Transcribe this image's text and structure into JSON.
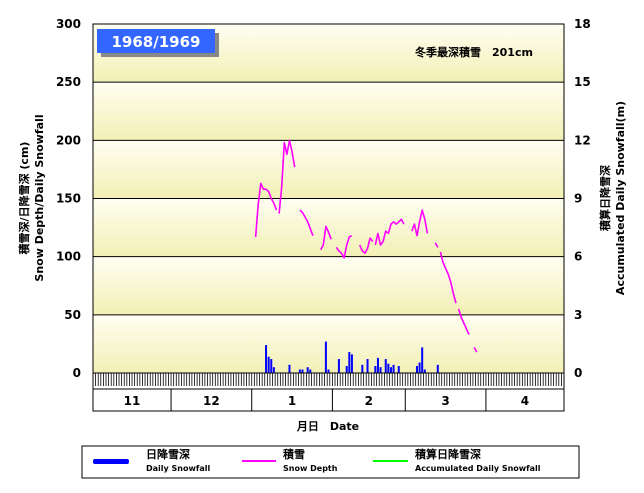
{
  "chart_data": {
    "type": "bar+line",
    "season_label": "1968/1969",
    "annotation": "冬季最深積雪　201cm",
    "left_axis": {
      "title_ja": "積雪深/日降雪深 (cm)",
      "title_en": "Snow Depth/Daily Snowfall",
      "ticks": [
        "0",
        "50",
        "100",
        "150",
        "200",
        "250",
        "300"
      ],
      "range": [
        0,
        300
      ]
    },
    "right_axis": {
      "title_ja": "積算日降雪深",
      "title_en": "Accumulated Daily Snowfall(m)",
      "ticks": [
        "0",
        "3",
        "6",
        "9",
        "12",
        "15",
        "18"
      ],
      "range": [
        0,
        18
      ]
    },
    "x_axis": {
      "title": "月日　Date",
      "months": [
        {
          "label": "11",
          "days": 30
        },
        {
          "label": "12",
          "days": 31
        },
        {
          "label": "1",
          "days": 31
        },
        {
          "label": "2",
          "days": 28
        },
        {
          "label": "3",
          "days": 31
        },
        {
          "label": "4",
          "days": 30
        }
      ]
    },
    "legend": [
      {
        "ja": "日降雪深",
        "en": "Daily Snowfall",
        "color": "#0000ff"
      },
      {
        "ja": "積雪",
        "en": "Snow Depth",
        "color": "#ff00ff"
      },
      {
        "ja": "積算日降雪深",
        "en": "Accumulated Daily Snowfall",
        "color": "#00ff00"
      }
    ],
    "colors": {
      "daily_snowfall": "#0000ff",
      "snow_depth": "#ff00ff",
      "accumulated": "#00ff00",
      "label_box": "#3366ff"
    },
    "daily_snowfall": [
      [
        66,
        24
      ],
      [
        67,
        14
      ],
      [
        68,
        12
      ],
      [
        69,
        5
      ],
      [
        75,
        7
      ],
      [
        79,
        3
      ],
      [
        80,
        3
      ],
      [
        82,
        5
      ],
      [
        83,
        3
      ],
      [
        89,
        27
      ],
      [
        90,
        3
      ],
      [
        94,
        12
      ],
      [
        97,
        6
      ],
      [
        98,
        18
      ],
      [
        99,
        16
      ],
      [
        103,
        7
      ],
      [
        105,
        12
      ],
      [
        108,
        6
      ],
      [
        109,
        13
      ],
      [
        110,
        5
      ],
      [
        112,
        12
      ],
      [
        113,
        8
      ],
      [
        114,
        5
      ],
      [
        115,
        7
      ],
      [
        117,
        6
      ],
      [
        124,
        6
      ],
      [
        125,
        9
      ],
      [
        126,
        22
      ],
      [
        127,
        3
      ],
      [
        132,
        7
      ]
    ],
    "snow_depth_segments": [
      [
        [
          62,
          117
        ],
        [
          63,
          145
        ],
        [
          64,
          163
        ],
        [
          65,
          158
        ],
        [
          66,
          158
        ],
        [
          67,
          156
        ],
        [
          68,
          150
        ],
        [
          69,
          146
        ],
        [
          70,
          140
        ]
      ],
      [
        [
          71,
          137
        ],
        [
          72,
          160
        ],
        [
          73,
          198
        ],
        [
          74,
          188
        ],
        [
          75,
          200
        ],
        [
          76,
          190
        ],
        [
          77,
          177
        ]
      ],
      [
        [
          79,
          140
        ],
        [
          80,
          138
        ],
        [
          81,
          134
        ],
        [
          82,
          130
        ],
        [
          83,
          124
        ],
        [
          84,
          118
        ]
      ],
      [
        [
          87,
          106
        ],
        [
          88,
          110
        ],
        [
          89,
          126
        ],
        [
          90,
          121
        ],
        [
          91,
          115
        ]
      ],
      [
        [
          93,
          108
        ],
        [
          94,
          105
        ],
        [
          95,
          103
        ],
        [
          96,
          99
        ],
        [
          97,
          110
        ],
        [
          98,
          117
        ],
        [
          99,
          118
        ]
      ],
      [
        [
          102,
          110
        ],
        [
          103,
          105
        ],
        [
          104,
          103
        ],
        [
          105,
          107
        ],
        [
          106,
          116
        ],
        [
          107,
          113
        ]
      ],
      [
        [
          108,
          110
        ],
        [
          109,
          120
        ],
        [
          110,
          110
        ],
        [
          111,
          113
        ],
        [
          112,
          122
        ],
        [
          113,
          120
        ],
        [
          114,
          128
        ],
        [
          115,
          130
        ],
        [
          116,
          128
        ],
        [
          117,
          130
        ],
        [
          118,
          132
        ],
        [
          119,
          128
        ]
      ],
      [
        [
          122,
          122
        ],
        [
          123,
          128
        ],
        [
          124,
          118
        ],
        [
          125,
          130
        ],
        [
          126,
          140
        ],
        [
          127,
          132
        ],
        [
          128,
          120
        ]
      ],
      [
        [
          131,
          112
        ],
        [
          132,
          108
        ]
      ],
      [
        [
          133,
          104
        ],
        [
          134,
          95
        ],
        [
          135,
          90
        ],
        [
          136,
          85
        ],
        [
          137,
          78
        ],
        [
          138,
          68
        ],
        [
          139,
          60
        ]
      ],
      [
        [
          140,
          55
        ],
        [
          141,
          48
        ],
        [
          142,
          43
        ],
        [
          143,
          38
        ],
        [
          144,
          33
        ]
      ],
      [
        [
          146,
          22
        ],
        [
          147,
          18
        ]
      ]
    ]
  }
}
